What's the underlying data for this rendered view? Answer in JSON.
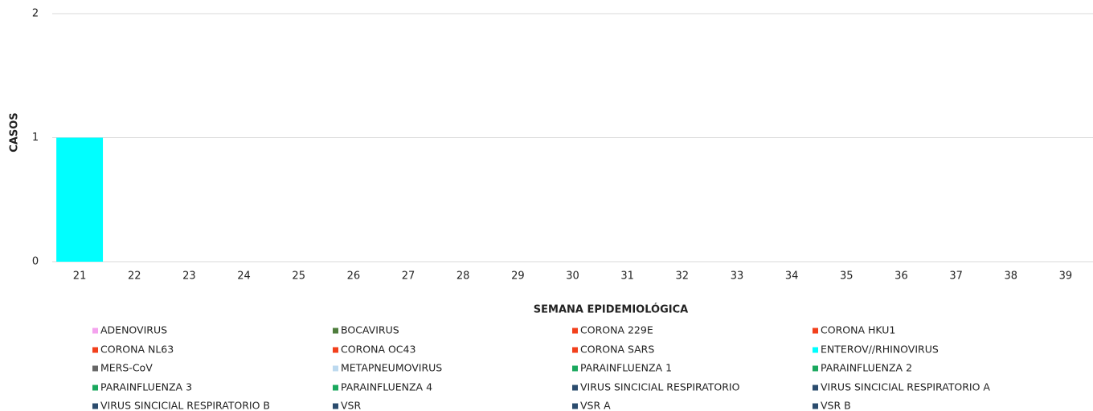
{
  "chart_data": {
    "type": "stacked_bar",
    "xlabel": "SEMANA EPIDEMIOLÓGICA",
    "ylabel": "CASOS",
    "categories": [
      "21",
      "22",
      "23",
      "24",
      "25",
      "26",
      "27",
      "28",
      "29",
      "30",
      "31",
      "32",
      "33",
      "34",
      "35",
      "36",
      "37",
      "38",
      "39"
    ],
    "ylim": [
      0,
      2
    ],
    "yticks": [
      0,
      1,
      2
    ],
    "grid": true,
    "series": [
      {
        "name": "ADENOVIRUS",
        "color": "#f4a3ee",
        "values": [
          0,
          0,
          0,
          0,
          0,
          0,
          0,
          0,
          0,
          0,
          0,
          0,
          0,
          0,
          0,
          0,
          0,
          0,
          0
        ]
      },
      {
        "name": "BOCAVIRUS",
        "color": "#4e7d3c",
        "values": [
          0,
          0,
          0,
          0,
          0,
          0,
          0,
          0,
          0,
          0,
          0,
          0,
          0,
          0,
          0,
          0,
          0,
          0,
          0
        ]
      },
      {
        "name": "CORONA 229E",
        "color": "#f2401c",
        "values": [
          0,
          0,
          0,
          0,
          0,
          0,
          0,
          0,
          0,
          0,
          0,
          0,
          0,
          0,
          0,
          0,
          0,
          0,
          0
        ]
      },
      {
        "name": "CORONA HKU1",
        "color": "#f2401c",
        "values": [
          0,
          0,
          0,
          0,
          0,
          0,
          0,
          0,
          0,
          0,
          0,
          0,
          0,
          0,
          0,
          0,
          0,
          0,
          0
        ]
      },
      {
        "name": "CORONA NL63",
        "color": "#f2401c",
        "values": [
          0,
          0,
          0,
          0,
          0,
          0,
          0,
          0,
          0,
          0,
          0,
          0,
          0,
          0,
          0,
          0,
          0,
          0,
          0
        ]
      },
      {
        "name": "CORONA OC43",
        "color": "#f2401c",
        "values": [
          0,
          0,
          0,
          0,
          0,
          0,
          0,
          0,
          0,
          0,
          0,
          0,
          0,
          0,
          0,
          0,
          0,
          0,
          0
        ]
      },
      {
        "name": "CORONA SARS",
        "color": "#f2401c",
        "values": [
          0,
          0,
          0,
          0,
          0,
          0,
          0,
          0,
          0,
          0,
          0,
          0,
          0,
          0,
          0,
          0,
          0,
          0,
          0
        ]
      },
      {
        "name": "ENTEROV//RHINOVIRUS",
        "color": "#00ffff",
        "values": [
          1,
          0,
          0,
          0,
          0,
          0,
          0,
          0,
          0,
          0,
          0,
          0,
          0,
          0,
          0,
          0,
          0,
          0,
          0
        ]
      },
      {
        "name": "MERS-CoV",
        "color": "#666666",
        "values": [
          0,
          0,
          0,
          0,
          0,
          0,
          0,
          0,
          0,
          0,
          0,
          0,
          0,
          0,
          0,
          0,
          0,
          0,
          0
        ]
      },
      {
        "name": "METAPNEUMOVIRUS",
        "color": "#bcd9ef",
        "values": [
          0,
          0,
          0,
          0,
          0,
          0,
          0,
          0,
          0,
          0,
          0,
          0,
          0,
          0,
          0,
          0,
          0,
          0,
          0
        ]
      },
      {
        "name": "PARAINFLUENZA 1",
        "color": "#1aa85e",
        "values": [
          0,
          0,
          0,
          0,
          0,
          0,
          0,
          0,
          0,
          0,
          0,
          0,
          0,
          0,
          0,
          0,
          0,
          0,
          0
        ]
      },
      {
        "name": "PARAINFLUENZA 2",
        "color": "#1aa85e",
        "values": [
          0,
          0,
          0,
          0,
          0,
          0,
          0,
          0,
          0,
          0,
          0,
          0,
          0,
          0,
          0,
          0,
          0,
          0,
          0
        ]
      },
      {
        "name": "PARAINFLUENZA 3",
        "color": "#1aa85e",
        "values": [
          0,
          0,
          0,
          0,
          0,
          0,
          0,
          0,
          0,
          0,
          0,
          0,
          0,
          0,
          0,
          0,
          0,
          0,
          0
        ]
      },
      {
        "name": "PARAINFLUENZA 4",
        "color": "#1aa85e",
        "values": [
          0,
          0,
          0,
          0,
          0,
          0,
          0,
          0,
          0,
          0,
          0,
          0,
          0,
          0,
          0,
          0,
          0,
          0,
          0
        ]
      },
      {
        "name": "VIRUS SINCICIAL RESPIRATORIO",
        "color": "#2b4c6e",
        "values": [
          0,
          0,
          0,
          0,
          0,
          0,
          0,
          0,
          0,
          0,
          0,
          0,
          0,
          0,
          0,
          0,
          0,
          0,
          0
        ]
      },
      {
        "name": "VIRUS SINCICIAL RESPIRATORIO A",
        "color": "#2b4c6e",
        "values": [
          0,
          0,
          0,
          0,
          0,
          0,
          0,
          0,
          0,
          0,
          0,
          0,
          0,
          0,
          0,
          0,
          0,
          0,
          0
        ]
      },
      {
        "name": "VIRUS SINCICIAL RESPIRATORIO B",
        "color": "#2b4c6e",
        "values": [
          0,
          0,
          0,
          0,
          0,
          0,
          0,
          0,
          0,
          0,
          0,
          0,
          0,
          0,
          0,
          0,
          0,
          0,
          0
        ]
      },
      {
        "name": "VSR",
        "color": "#2b4c6e",
        "values": [
          0,
          0,
          0,
          0,
          0,
          0,
          0,
          0,
          0,
          0,
          0,
          0,
          0,
          0,
          0,
          0,
          0,
          0,
          0
        ]
      },
      {
        "name": "VSR A",
        "color": "#2b4c6e",
        "values": [
          0,
          0,
          0,
          0,
          0,
          0,
          0,
          0,
          0,
          0,
          0,
          0,
          0,
          0,
          0,
          0,
          0,
          0,
          0
        ]
      },
      {
        "name": "VSR B",
        "color": "#2b4c6e",
        "values": [
          0,
          0,
          0,
          0,
          0,
          0,
          0,
          0,
          0,
          0,
          0,
          0,
          0,
          0,
          0,
          0,
          0,
          0,
          0
        ]
      }
    ]
  }
}
